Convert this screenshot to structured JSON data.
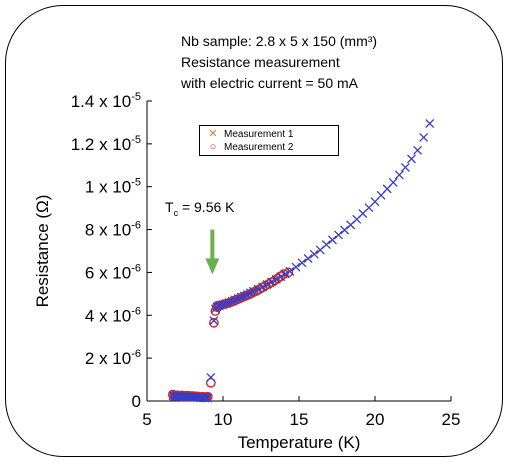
{
  "annotation": {
    "line1": "Nb sample: 2.8 x 5 x 150 (mm³)",
    "line2": "Resistance measurement",
    "line3": "with electric current = 50 mA"
  },
  "tc_label": {
    "text": "T",
    "sub": "c",
    "rest": " = 9.56 K"
  },
  "colors": {
    "measurement1": "#3a3dc4",
    "measurement2": "#d42a1e",
    "legend_cross": "#e07a30",
    "arrow": "#6ab04c",
    "text": "#000000"
  },
  "chart_data": {
    "type": "scatter",
    "xlabel": "Temperature (K)",
    "ylabel": "Resistance (Ω)",
    "xlim": [
      5,
      25
    ],
    "ylim": [
      0,
      1.4e-05
    ],
    "xticks": [
      5,
      10,
      15,
      20,
      25
    ],
    "xtick_labels": [
      "5",
      "10",
      "15",
      "20",
      "25"
    ],
    "yticks": [
      0,
      2e-06,
      4e-06,
      6e-06,
      8e-06,
      1e-05,
      1.2e-05,
      1.4e-05
    ],
    "ytick_labels": [
      {
        "mant": "0",
        "exp": ""
      },
      {
        "mant": "2 x 10",
        "exp": "-6"
      },
      {
        "mant": "4 x 10",
        "exp": "-6"
      },
      {
        "mant": "6 x 10",
        "exp": "-6"
      },
      {
        "mant": "8 x 10",
        "exp": "-6"
      },
      {
        "mant": "1 x 10",
        "exp": "-5"
      },
      {
        "mant": "1.2 x 10",
        "exp": "-5"
      },
      {
        "mant": "1.4 x 10",
        "exp": "-5"
      }
    ],
    "grid": false,
    "legend_position": "top-left",
    "arrow_x": 9.3,
    "arrow_y_range": [
      8e-06,
      6e-06
    ],
    "series": [
      {
        "name": "Measurement 1",
        "marker": "x",
        "x": [
          6.7,
          6.8,
          6.9,
          7.0,
          7.1,
          7.2,
          7.3,
          7.4,
          7.5,
          7.6,
          7.7,
          7.8,
          7.9,
          8.0,
          8.1,
          8.2,
          8.3,
          8.4,
          8.5,
          8.6,
          8.7,
          8.8,
          8.9,
          9.0,
          9.2,
          9.4,
          9.5,
          9.6,
          9.7,
          9.8,
          10.0,
          10.2,
          10.4,
          10.6,
          10.8,
          11.0,
          11.2,
          11.4,
          11.6,
          11.8,
          12.0,
          12.3,
          12.6,
          12.9,
          13.2,
          13.5,
          13.8,
          14.1,
          14.4,
          14.8,
          15.2,
          15.6,
          16.0,
          16.4,
          16.8,
          17.2,
          17.6,
          18.0,
          18.4,
          18.8,
          19.2,
          19.6,
          20.0,
          20.4,
          20.8,
          21.2,
          21.6,
          22.0,
          22.4,
          22.8,
          23.2,
          23.6
        ],
        "y": [
          2.5e-07,
          2.2e-07,
          2e-07,
          2.3e-07,
          2.1e-07,
          1.9e-07,
          2.2e-07,
          2e-07,
          1.8e-07,
          2.1e-07,
          1.9e-07,
          2e-07,
          1.8e-07,
          1.9e-07,
          1.7e-07,
          1.8e-07,
          1.6e-07,
          1.7e-07,
          1.5e-07,
          1.6e-07,
          1.5e-07,
          1.4e-07,
          1.5e-07,
          1.4e-07,
          1.1e-06,
          3.75e-06,
          4.3e-06,
          4.4e-06,
          4.45e-06,
          4.47e-06,
          4.5e-06,
          4.55e-06,
          4.6e-06,
          4.65e-06,
          4.72e-06,
          4.78e-06,
          4.85e-06,
          4.9e-06,
          4.97e-06,
          5.05e-06,
          5.12e-06,
          5.22e-06,
          5.32e-06,
          5.44e-06,
          5.56e-06,
          5.68e-06,
          5.8e-06,
          5.93e-06,
          6.05e-06,
          6.25e-06,
          6.45e-06,
          6.65e-06,
          6.85e-06,
          7.05e-06,
          7.3e-06,
          7.52e-06,
          7.75e-06,
          7.98e-06,
          8.22e-06,
          8.48e-06,
          8.75e-06,
          9.02e-06,
          9.3e-06,
          9.6e-06,
          9.9e-06,
          1.02e-05,
          1.055e-05,
          1.09e-05,
          1.13e-05,
          1.17e-05,
          1.23e-05,
          1.295e-05
        ]
      },
      {
        "name": "Measurement 2",
        "marker": "o",
        "x": [
          6.7,
          6.8,
          6.9,
          7.0,
          7.1,
          7.2,
          7.3,
          7.4,
          7.5,
          7.6,
          7.7,
          7.8,
          7.9,
          8.0,
          8.1,
          8.2,
          8.3,
          8.4,
          8.5,
          8.6,
          8.7,
          8.8,
          8.9,
          9.0,
          9.2,
          9.4,
          9.5,
          9.6,
          9.7,
          9.8,
          10.0,
          10.2,
          10.4,
          10.6,
          10.8,
          11.0,
          11.2,
          11.4,
          11.6,
          11.8,
          12.0,
          12.2,
          12.4,
          12.6,
          12.8,
          13.0,
          13.2,
          13.4,
          13.6,
          13.8,
          14.0,
          14.3
        ],
        "y": [
          3e-07,
          2.6e-07,
          2.4e-07,
          2.7e-07,
          2.5e-07,
          2.3e-07,
          2.6e-07,
          2.4e-07,
          2.2e-07,
          2.5e-07,
          2.3e-07,
          2.4e-07,
          2.2e-07,
          2.3e-07,
          2.1e-07,
          2.2e-07,
          2e-07,
          2.1e-07,
          1.9e-07,
          2e-07,
          1.9e-07,
          1.8e-07,
          1.9e-07,
          2e-07,
          8.5e-07,
          3.65e-06,
          4.2e-06,
          4.38e-06,
          4.42e-06,
          4.46e-06,
          4.5e-06,
          4.54e-06,
          4.58e-06,
          4.64e-06,
          4.7e-06,
          4.76e-06,
          4.82e-06,
          4.88e-06,
          4.94e-06,
          5e-06,
          5.08e-06,
          5.14e-06,
          5.22e-06,
          5.3e-06,
          5.38e-06,
          5.46e-06,
          5.54e-06,
          5.62e-06,
          5.72e-06,
          5.82e-06,
          5.92e-06,
          6e-06
        ]
      }
    ]
  }
}
